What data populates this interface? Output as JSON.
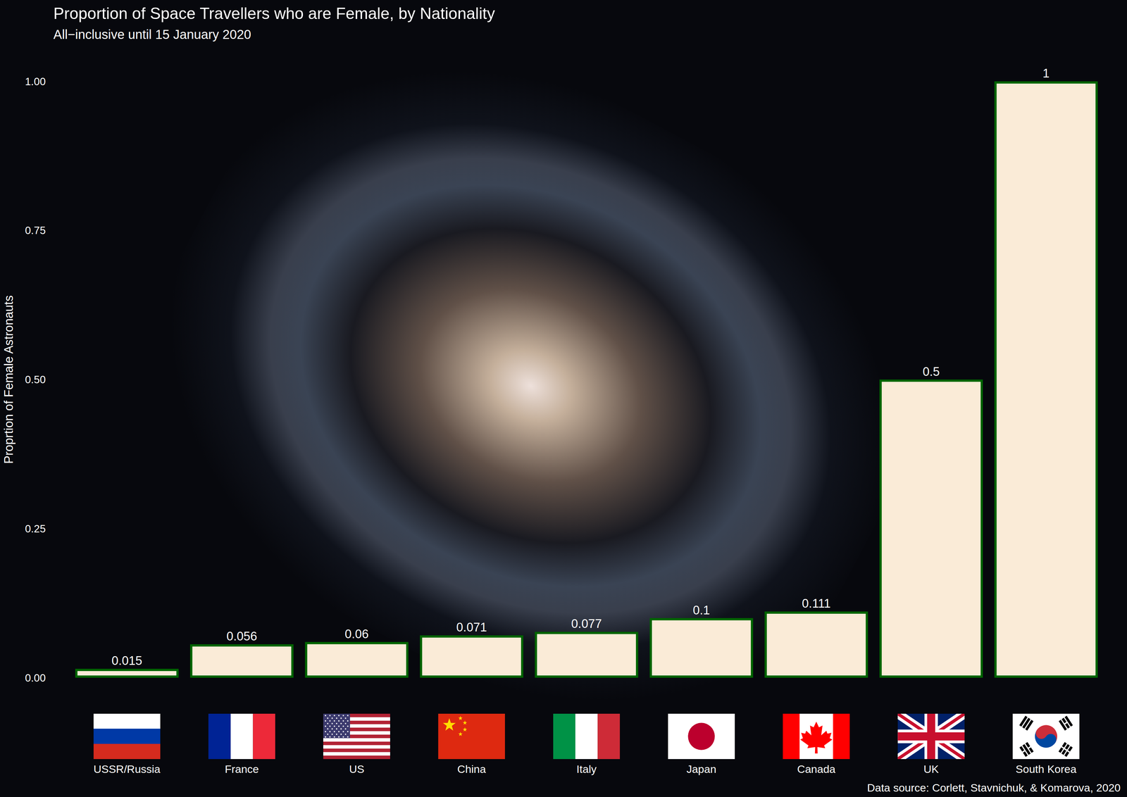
{
  "chart_data": {
    "type": "bar",
    "title": "Proportion of Space Travellers who are Female, by Nationality",
    "subtitle": "All−inclusive until 15 January 2020",
    "y_label": "Proprtion of Female Astronauts",
    "source": "Data source: Corlett, Stavnichuk, & Komarova, 2020",
    "categories": [
      "USSR/Russia",
      "France",
      "US",
      "China",
      "Italy",
      "Japan",
      "Canada",
      "UK",
      "South Korea"
    ],
    "values": [
      0.015,
      0.056,
      0.06,
      0.071,
      0.077,
      0.1,
      0.111,
      0.5,
      1
    ],
    "color": "#FAEBD7",
    "ylim": [
      0,
      1
    ],
    "yticks": [
      {
        "value": 0,
        "label": "0.00"
      },
      {
        "value": 0.25,
        "label": "0.25"
      },
      {
        "value": 0.5,
        "label": "0.50"
      },
      {
        "value": 0.75,
        "label": "0.75"
      },
      {
        "value": 1,
        "label": "1.00"
      }
    ],
    "grid": false,
    "data_labels": true
  }
}
